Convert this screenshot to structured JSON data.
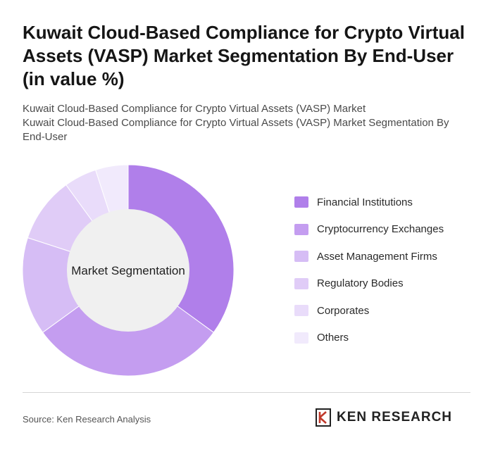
{
  "header": {
    "title": "Kuwait Cloud-Based Compliance for Crypto Virtual Assets (VASP) Market Segmentation By End-User (in value %)",
    "subtitle_line1": "Kuwait Cloud-Based Compliance for Crypto Virtual Assets (VASP) Market",
    "subtitle_line2": "Kuwait Cloud-Based Compliance for Crypto Virtual Assets (VASP) Market Segmentation By End-User"
  },
  "chart_data": {
    "type": "pie",
    "variant": "donut",
    "center_label": "Market Segmentation",
    "categories": [
      "Financial Institutions",
      "Cryptocurrency Exchanges",
      "Asset Management Firms",
      "Regulatory Bodies",
      "Corporates",
      "Others"
    ],
    "values": [
      35,
      30,
      15,
      10,
      5,
      5
    ],
    "colors": [
      "#b07fea",
      "#c49df0",
      "#d6bdf5",
      "#e0ccf7",
      "#e9dcfa",
      "#f1eafc"
    ],
    "legend_position": "right"
  },
  "footer": {
    "source": "Source: Ken Research Analysis",
    "brand": "KEN RESEARCH",
    "brand_icon": "ken-research-logo-icon"
  }
}
